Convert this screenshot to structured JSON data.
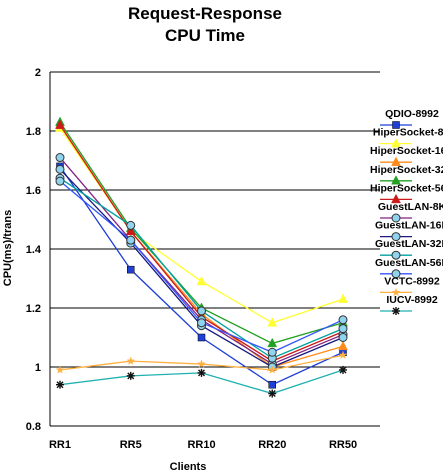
{
  "chart_data": {
    "type": "line",
    "title": [
      "Request-Response",
      "CPU Time"
    ],
    "xlabel": "Clients",
    "ylabel": "CPU(ms)/trans",
    "categories": [
      "RR1",
      "RR5",
      "RR10",
      "RR20",
      "RR50"
    ],
    "ylim": [
      0.8,
      2.0
    ],
    "yticks": [
      "0.8",
      "1",
      "1.2",
      "1.4",
      "1.6",
      "1.8",
      "2"
    ],
    "ytick_values": [
      0.8,
      1.0,
      1.2,
      1.4,
      1.6,
      1.8,
      2.0
    ],
    "grid": "horizontal",
    "legend_position": "right",
    "series": [
      {
        "name": "QDIO-8992",
        "color": "#1f3fd6",
        "marker": "square",
        "values": [
          1.68,
          1.33,
          1.1,
          0.94,
          1.05
        ]
      },
      {
        "name": "HiperSocket-8K",
        "color": "#ffff33",
        "marker": "triangle",
        "values": [
          1.81,
          1.46,
          1.29,
          1.15,
          1.23
        ]
      },
      {
        "name": "HiperSocket-16K",
        "color": "#ff8c1a",
        "marker": "triangle",
        "values": [
          1.82,
          1.46,
          1.18,
          1.0,
          1.07
        ]
      },
      {
        "name": "HiperSocket-32K",
        "color": "#22a022",
        "marker": "triangle",
        "values": [
          1.83,
          1.47,
          1.2,
          1.08,
          1.15
        ]
      },
      {
        "name": "HiperSocket-56K",
        "color": "#cc1a1a",
        "marker": "triangle",
        "values": [
          1.82,
          1.46,
          1.17,
          1.02,
          1.12
        ]
      },
      {
        "name": "GuestLAN-8K",
        "color": "#802080",
        "marker": "circle",
        "values": [
          1.71,
          1.43,
          1.16,
          1.01,
          1.11
        ]
      },
      {
        "name": "GuestLAN-16K",
        "color": "#1a1a80",
        "marker": "circle",
        "values": [
          1.67,
          1.42,
          1.14,
          1.0,
          1.1
        ]
      },
      {
        "name": "GuestLAN-32K",
        "color": "#00a0a0",
        "marker": "circle",
        "values": [
          1.64,
          1.48,
          1.19,
          1.03,
          1.13
        ]
      },
      {
        "name": "GuestLAN-56K",
        "color": "#3355ff",
        "marker": "circle",
        "values": [
          1.63,
          1.43,
          1.15,
          1.05,
          1.16
        ]
      },
      {
        "name": "VCTC-8992",
        "color": "#ffb040",
        "marker": "star",
        "values": [
          0.99,
          1.02,
          1.01,
          0.99,
          1.04
        ]
      },
      {
        "name": "IUCV-8992",
        "color": "#20b0b0",
        "marker": "asterisk",
        "values": [
          0.94,
          0.97,
          0.98,
          0.91,
          0.99
        ]
      }
    ]
  }
}
